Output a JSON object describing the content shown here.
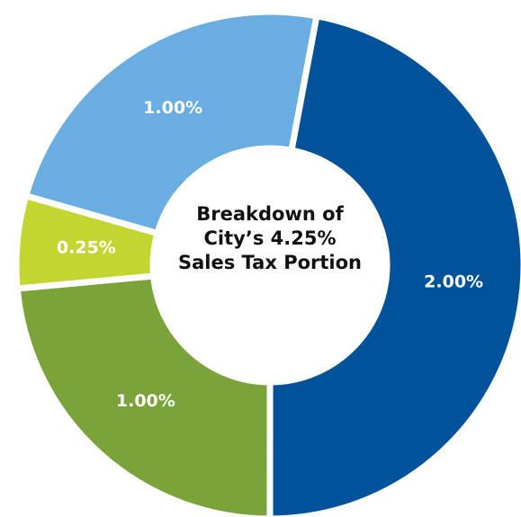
{
  "chart_data": {
    "type": "donut",
    "title": "Breakdown of City’s 4.25% Sales Tax Portion",
    "values": [
      2.0,
      1.0,
      0.25,
      1.0
    ],
    "value_labels": [
      "2.00%",
      "1.00%",
      "0.25%",
      "1.00%"
    ],
    "colors": [
      "#00539b",
      "#7aa33a",
      "#c2d531",
      "#6aade0"
    ]
  }
}
